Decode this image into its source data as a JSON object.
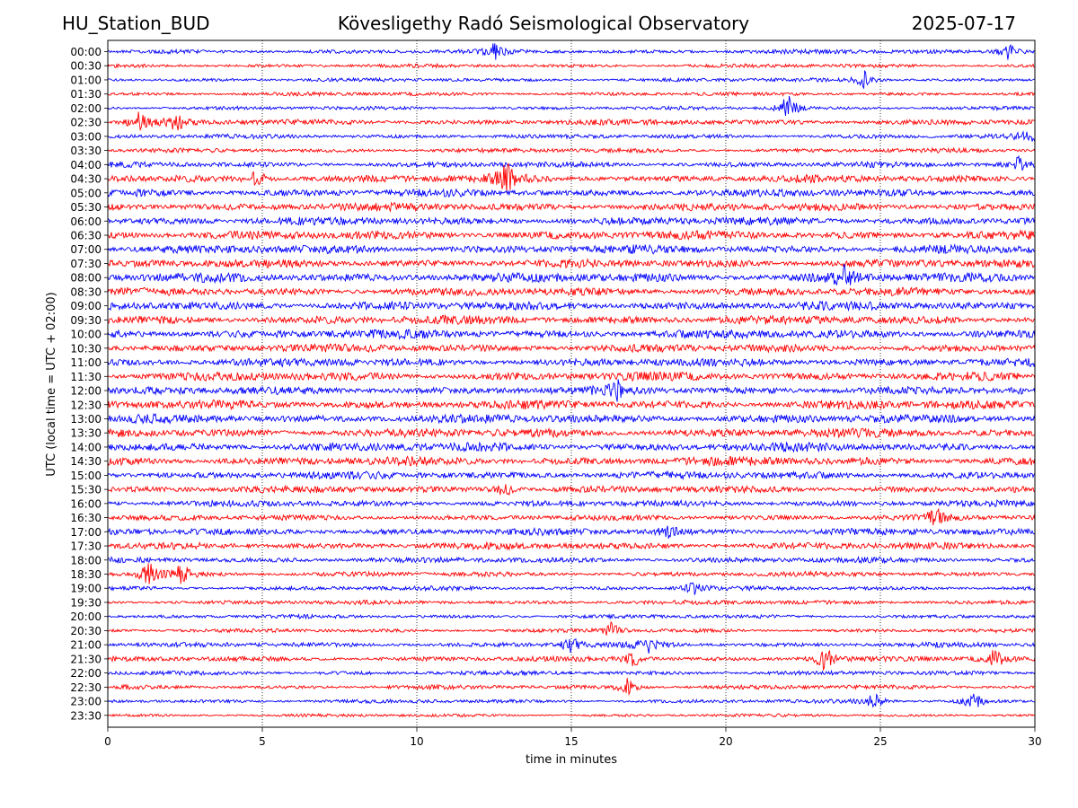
{
  "header": {
    "station": "HU_Station_BUD",
    "title": "Kövesligethy Radó Seismological Observatory",
    "date": "2025-07-17"
  },
  "chart_data": {
    "type": "line",
    "title": "Kövesligethy Radó Seismological Observatory",
    "xlabel": "time in minutes",
    "ylabel": "UTC (local time = UTC + 02:00)",
    "xlim": [
      0,
      30
    ],
    "xticks": [
      0,
      5,
      10,
      15,
      20,
      25,
      30
    ],
    "grid": "vertical dotted",
    "colors": [
      "#0000ff",
      "#ff0000"
    ],
    "rows": [
      "00:00",
      "00:30",
      "01:00",
      "01:30",
      "02:00",
      "02:30",
      "03:00",
      "03:30",
      "04:00",
      "04:30",
      "05:00",
      "05:30",
      "06:00",
      "06:30",
      "07:00",
      "07:30",
      "08:00",
      "08:30",
      "09:00",
      "09:30",
      "10:00",
      "10:30",
      "11:00",
      "11:30",
      "12:00",
      "12:30",
      "13:00",
      "13:30",
      "14:00",
      "14:30",
      "15:00",
      "15:30",
      "16:00",
      "16:30",
      "17:00",
      "17:30",
      "18:00",
      "18:30",
      "19:00",
      "19:30",
      "20:00",
      "20:30",
      "21:00",
      "21:30",
      "22:00",
      "22:30",
      "23:00",
      "23:30"
    ],
    "amplitude_level": [
      0.35,
      0.3,
      0.3,
      0.3,
      0.3,
      0.45,
      0.35,
      0.35,
      0.45,
      0.6,
      0.6,
      0.65,
      0.65,
      0.7,
      0.7,
      0.65,
      0.75,
      0.65,
      0.7,
      0.7,
      0.7,
      0.65,
      0.65,
      0.7,
      0.65,
      0.7,
      0.7,
      0.7,
      0.7,
      0.7,
      0.6,
      0.55,
      0.5,
      0.45,
      0.55,
      0.55,
      0.45,
      0.4,
      0.35,
      0.35,
      0.3,
      0.3,
      0.4,
      0.4,
      0.35,
      0.35,
      0.3,
      0.25
    ],
    "events": [
      {
        "row": "00:00",
        "minute": 29.2,
        "strength": 1.6
      },
      {
        "row": "00:00",
        "minute": 12.5,
        "strength": 1.2
      },
      {
        "row": "01:00",
        "minute": 24.5,
        "strength": 1.3
      },
      {
        "row": "02:00",
        "minute": 22.0,
        "strength": 2.2
      },
      {
        "row": "02:30",
        "minute": 1.0,
        "strength": 1.6
      },
      {
        "row": "02:30",
        "minute": 2.2,
        "strength": 1.3
      },
      {
        "row": "03:00",
        "minute": 29.8,
        "strength": 1.4
      },
      {
        "row": "04:00",
        "minute": 29.5,
        "strength": 1.3
      },
      {
        "row": "04:30",
        "minute": 12.9,
        "strength": 2.4
      },
      {
        "row": "04:30",
        "minute": 4.8,
        "strength": 1.4
      },
      {
        "row": "08:00",
        "minute": 23.8,
        "strength": 1.8
      },
      {
        "row": "12:00",
        "minute": 16.5,
        "strength": 1.4
      },
      {
        "row": "15:30",
        "minute": 12.8,
        "strength": 1.4
      },
      {
        "row": "16:30",
        "minute": 26.8,
        "strength": 1.4
      },
      {
        "row": "17:00",
        "minute": 18.2,
        "strength": 1.4
      },
      {
        "row": "18:30",
        "minute": 1.3,
        "strength": 2.2
      },
      {
        "row": "18:30",
        "minute": 2.4,
        "strength": 1.8
      },
      {
        "row": "19:00",
        "minute": 19.0,
        "strength": 1.3
      },
      {
        "row": "20:30",
        "minute": 16.3,
        "strength": 1.3
      },
      {
        "row": "21:00",
        "minute": 17.5,
        "strength": 1.6
      },
      {
        "row": "21:00",
        "minute": 15.0,
        "strength": 1.3
      },
      {
        "row": "21:30",
        "minute": 23.2,
        "strength": 2.2
      },
      {
        "row": "21:30",
        "minute": 28.7,
        "strength": 1.6
      },
      {
        "row": "21:30",
        "minute": 17.0,
        "strength": 1.3
      },
      {
        "row": "22:30",
        "minute": 16.8,
        "strength": 1.4
      },
      {
        "row": "23:00",
        "minute": 28.0,
        "strength": 1.5
      },
      {
        "row": "23:00",
        "minute": 24.8,
        "strength": 1.3
      }
    ]
  }
}
